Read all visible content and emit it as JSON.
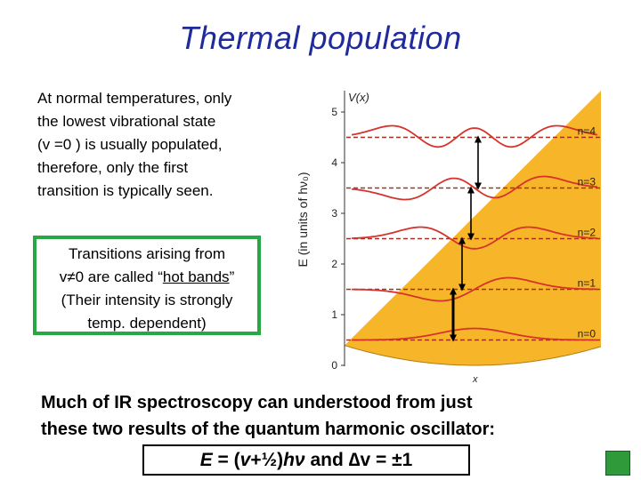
{
  "slide": {
    "title": "Thermal population",
    "intro": {
      "lines": [
        "At normal temperatures, only",
        "the lowest vibrational state",
        "(v =0 ) is usually populated,",
        "therefore, only the first",
        "transition is typically  seen."
      ]
    },
    "hot_bands_box": {
      "line1": "Transitions arising from",
      "line2_pre": "v≠0 are called “",
      "line2_u": "hot bands",
      "line2_post": "”",
      "line3": "(Their intensity is strongly",
      "line4": "temp. dependent)"
    },
    "summary": {
      "line1": "Much of IR spectroscopy can understood from just",
      "line2": "these two results of the quantum harmonic oscillator:"
    },
    "equation": {
      "E": "E",
      "part1": " = (",
      "v": "v",
      "part2": "+½)",
      "hnu": "hν",
      "part3": " and ",
      "delta": "∆v = ±1"
    }
  },
  "figure": {
    "y_axis_label": "E (in units of hν₀)",
    "curve_label": "V(x)",
    "x_axis_label": "x",
    "y_ticks": [
      "0",
      "1",
      "2",
      "3",
      "4",
      "5"
    ],
    "levels": [
      {
        "label": "n=0",
        "energy": 0.5
      },
      {
        "label": "n=1",
        "energy": 1.5
      },
      {
        "label": "n=2",
        "energy": 2.5
      },
      {
        "label": "n=3",
        "energy": 3.5
      },
      {
        "label": "n=4",
        "energy": 4.5
      }
    ],
    "colors": {
      "fill": "#f7b52a",
      "wave": "#d6332b",
      "level": "#b02a1e",
      "arrow": "#000000"
    }
  }
}
